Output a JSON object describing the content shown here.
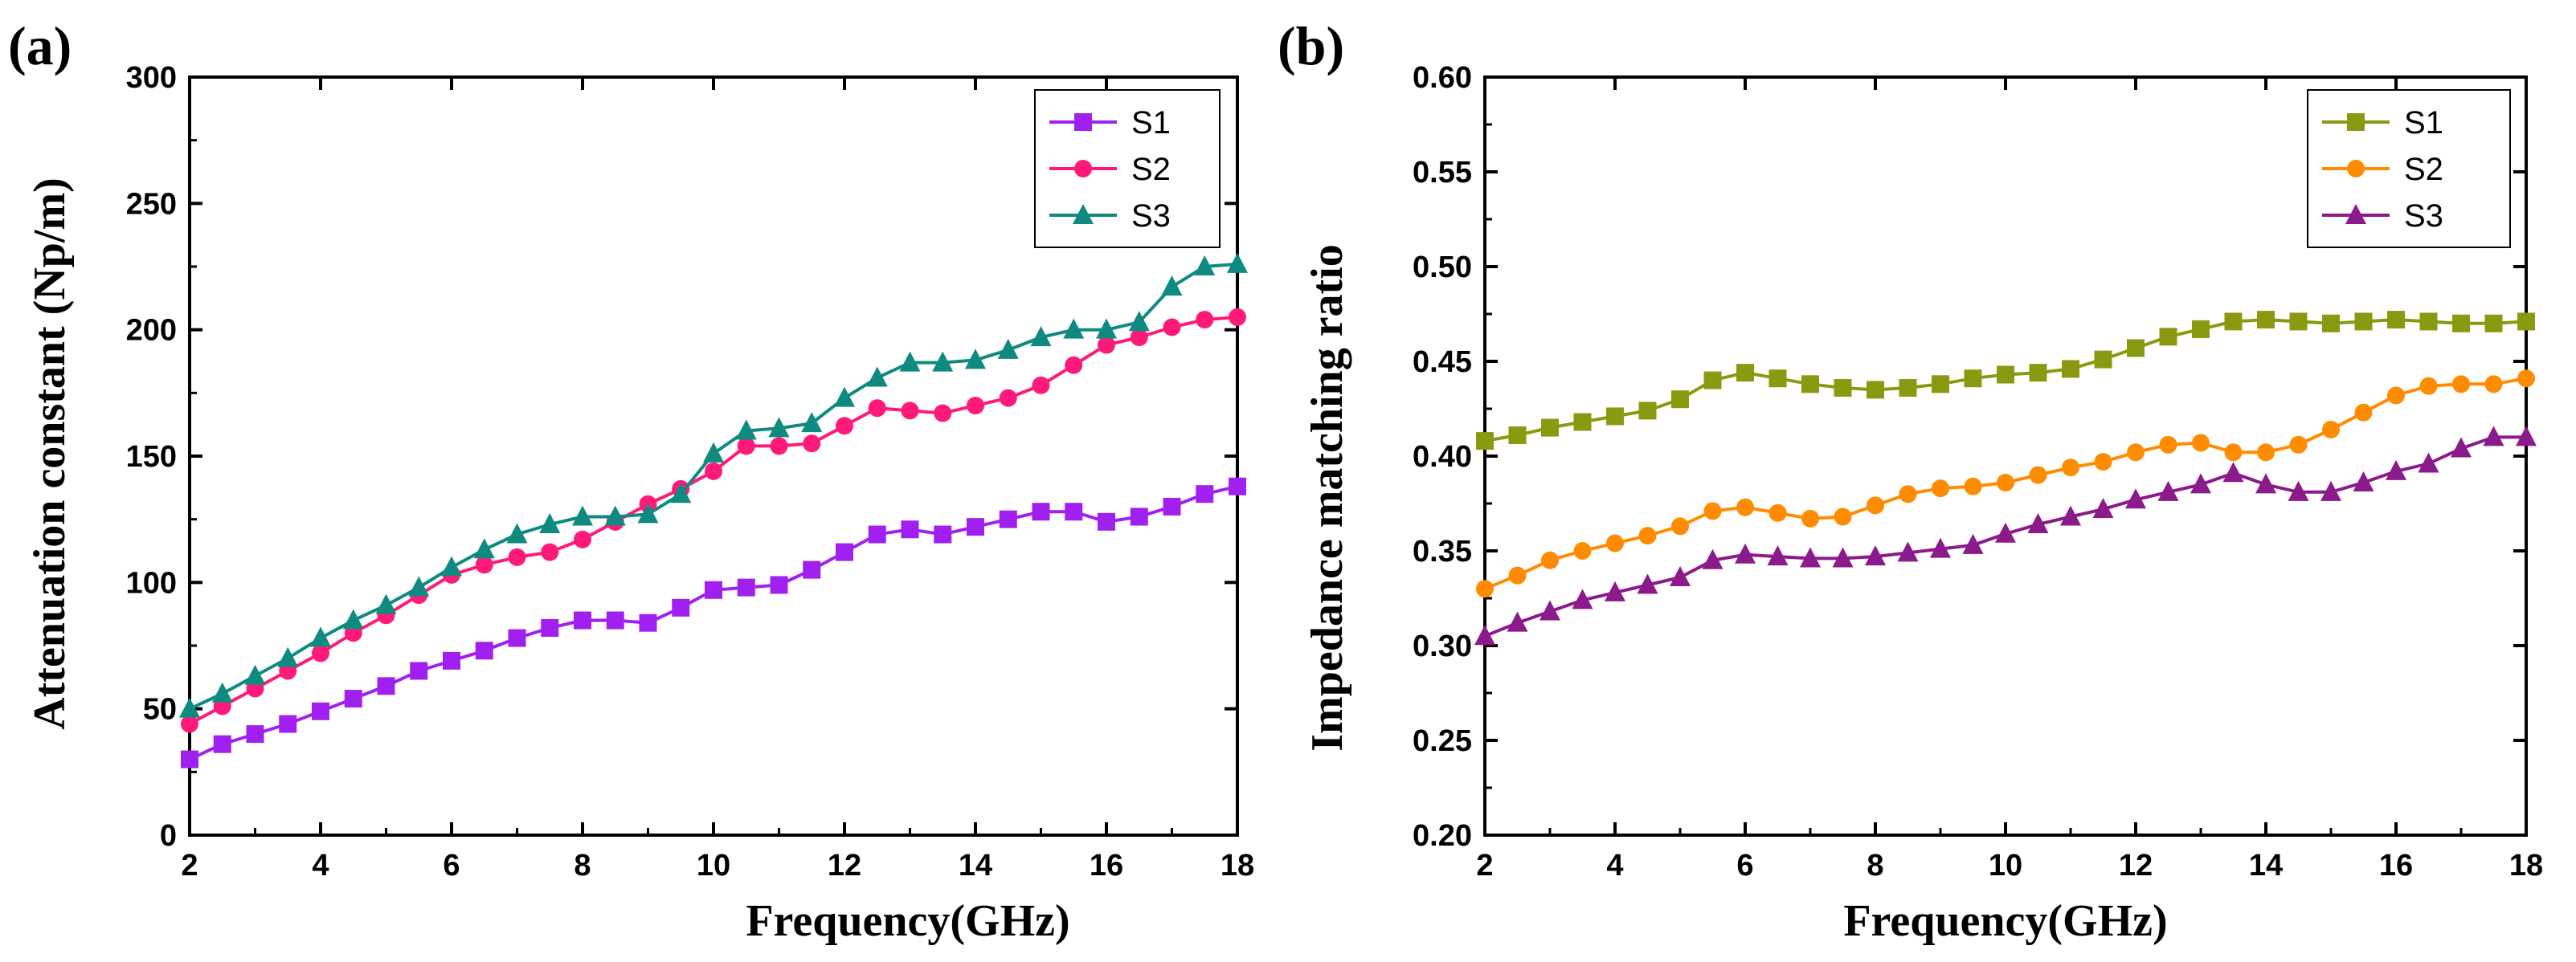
{
  "chart_data": [
    {
      "type": "line",
      "panel_label": "(a)",
      "xlabel": "Frequency(GHz)",
      "ylabel": "Attenuation constant (Np/m)",
      "xlim": [
        2,
        18
      ],
      "ylim": [
        0,
        300
      ],
      "xticks": [
        2,
        4,
        6,
        8,
        10,
        12,
        14,
        16,
        18
      ],
      "yticks": [
        0,
        50,
        100,
        150,
        200,
        250,
        300
      ],
      "legend_position": "top-right",
      "x": [
        2,
        2.5,
        3,
        3.5,
        4,
        4.5,
        5,
        5.5,
        6,
        6.5,
        7,
        7.5,
        8,
        8.5,
        9,
        9.5,
        10,
        10.5,
        11,
        11.5,
        12,
        12.5,
        13,
        13.5,
        14,
        14.5,
        15,
        15.5,
        16,
        16.5,
        17,
        17.5,
        18
      ],
      "series": [
        {
          "name": "S1",
          "color": "#a020f0",
          "marker": "square",
          "values": [
            30,
            36,
            40,
            44,
            49,
            54,
            59,
            65,
            69,
            73,
            78,
            82,
            85,
            85,
            84,
            90,
            97,
            98,
            99,
            105,
            112,
            119,
            121,
            119,
            122,
            125,
            128,
            128,
            124,
            126,
            130,
            135,
            138
          ]
        },
        {
          "name": "S2",
          "color": "#ff1a7a",
          "marker": "circle",
          "values": [
            44,
            51,
            58,
            65,
            72,
            80,
            87,
            95,
            103,
            107,
            110,
            112,
            117,
            124,
            131,
            137,
            144,
            154,
            154,
            155,
            162,
            169,
            168,
            167,
            170,
            173,
            178,
            186,
            194,
            197,
            201,
            204,
            205
          ]
        },
        {
          "name": "S3",
          "color": "#0f8a80",
          "marker": "triangle",
          "values": [
            50,
            56,
            63,
            70,
            78,
            85,
            91,
            98,
            106,
            113,
            119,
            123,
            126,
            126,
            127,
            135,
            151,
            160,
            161,
            163,
            173,
            181,
            187,
            187,
            188,
            192,
            197,
            200,
            200,
            203,
            217,
            225,
            226
          ]
        }
      ]
    },
    {
      "type": "line",
      "panel_label": "(b)",
      "xlabel": "Frequency(GHz)",
      "ylabel": "Impedance matching ratio",
      "xlim": [
        2,
        18
      ],
      "ylim": [
        0.2,
        0.6
      ],
      "xticks": [
        2,
        4,
        6,
        8,
        10,
        12,
        14,
        16,
        18
      ],
      "yticks": [
        "0.20",
        "0.25",
        "0.30",
        "0.35",
        "0.40",
        "0.45",
        "0.50",
        "0.55",
        "0.60"
      ],
      "legend_position": "top-right",
      "x": [
        2,
        2.5,
        3,
        3.5,
        4,
        4.5,
        5,
        5.5,
        6,
        6.5,
        7,
        7.5,
        8,
        8.5,
        9,
        9.5,
        10,
        10.5,
        11,
        11.5,
        12,
        12.5,
        13,
        13.5,
        14,
        14.5,
        15,
        15.5,
        16,
        16.5,
        17,
        17.5,
        18
      ],
      "series": [
        {
          "name": "S1",
          "color": "#8a9a10",
          "marker": "square",
          "values": [
            0.408,
            0.411,
            0.415,
            0.418,
            0.421,
            0.424,
            0.43,
            0.44,
            0.444,
            0.441,
            0.438,
            0.436,
            0.435,
            0.436,
            0.438,
            0.441,
            0.443,
            0.444,
            0.446,
            0.451,
            0.457,
            0.463,
            0.467,
            0.471,
            0.472,
            0.471,
            0.47,
            0.471,
            0.472,
            0.471,
            0.47,
            0.47,
            0.471
          ]
        },
        {
          "name": "S2",
          "color": "#ff8c00",
          "marker": "circle",
          "values": [
            0.33,
            0.337,
            0.345,
            0.35,
            0.354,
            0.358,
            0.363,
            0.371,
            0.373,
            0.37,
            0.367,
            0.368,
            0.374,
            0.38,
            0.383,
            0.384,
            0.386,
            0.39,
            0.394,
            0.397,
            0.402,
            0.406,
            0.407,
            0.402,
            0.402,
            0.406,
            0.414,
            0.423,
            0.432,
            0.437,
            0.438,
            0.438,
            0.441
          ]
        },
        {
          "name": "S3",
          "color": "#8b1a8b",
          "marker": "triangle",
          "values": [
            0.305,
            0.312,
            0.318,
            0.324,
            0.328,
            0.332,
            0.336,
            0.345,
            0.348,
            0.347,
            0.346,
            0.346,
            0.347,
            0.349,
            0.351,
            0.353,
            0.359,
            0.364,
            0.368,
            0.372,
            0.377,
            0.381,
            0.385,
            0.391,
            0.385,
            0.381,
            0.381,
            0.386,
            0.392,
            0.396,
            0.404,
            0.41,
            0.41
          ]
        }
      ]
    }
  ]
}
